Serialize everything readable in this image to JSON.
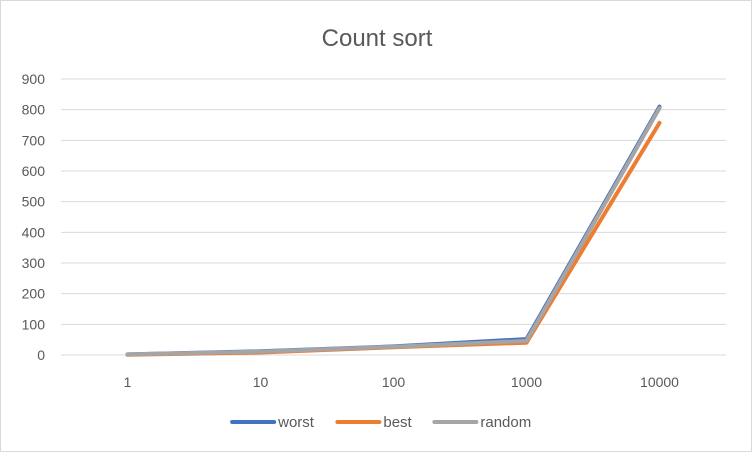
{
  "chart_data": {
    "type": "line",
    "title": "Count sort",
    "xlabel": "",
    "ylabel": "",
    "categories": [
      "1",
      "10",
      "100",
      "1000",
      "10000"
    ],
    "yticks": [
      0,
      100,
      200,
      300,
      400,
      500,
      600,
      700,
      800,
      900
    ],
    "ylim": [
      0,
      900
    ],
    "grid": true,
    "legend_position": "bottom",
    "series": [
      {
        "name": "worst",
        "color": "#4472C4",
        "values": [
          2,
          12,
          28,
          52,
          810
        ]
      },
      {
        "name": "best",
        "color": "#ED7D31",
        "values": [
          1,
          8,
          25,
          40,
          757
        ]
      },
      {
        "name": "random",
        "color": "#A5A5A5",
        "values": [
          2,
          11,
          27,
          46,
          805
        ]
      }
    ]
  }
}
